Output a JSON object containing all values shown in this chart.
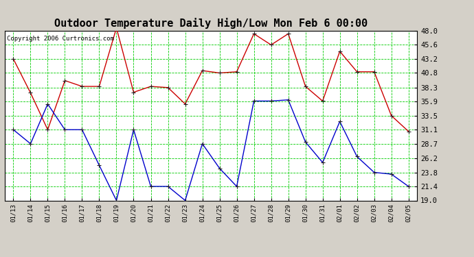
{
  "title": "Outdoor Temperature Daily High/Low Mon Feb 6 00:00",
  "copyright": "Copyright 2006 Curtronics.com",
  "x_labels": [
    "01/13",
    "01/14",
    "01/15",
    "01/16",
    "01/17",
    "01/18",
    "01/19",
    "01/20",
    "01/21",
    "01/22",
    "01/23",
    "01/24",
    "01/25",
    "01/26",
    "01/27",
    "01/28",
    "01/29",
    "01/30",
    "01/31",
    "02/01",
    "02/02",
    "02/03",
    "02/04",
    "02/05"
  ],
  "high": [
    43.2,
    37.4,
    31.1,
    39.5,
    38.5,
    38.5,
    48.5,
    37.5,
    38.5,
    38.3,
    35.5,
    41.2,
    40.8,
    41.0,
    47.5,
    45.6,
    47.5,
    38.5,
    36.0,
    44.5,
    41.0,
    41.0,
    33.5,
    30.8
  ],
  "low": [
    31.1,
    28.7,
    35.5,
    31.1,
    31.1,
    25.0,
    19.0,
    31.1,
    21.4,
    21.4,
    19.0,
    28.7,
    24.5,
    21.4,
    36.0,
    36.0,
    36.2,
    29.0,
    25.5,
    32.5,
    26.5,
    23.8,
    23.5,
    21.4
  ],
  "high_color": "#cc0000",
  "low_color": "#0000cc",
  "marker_color": "#006600",
  "bg_color": "#d4d0c8",
  "plot_bg": "#ffffff",
  "grid_color": "#00cc00",
  "title_fontsize": 11,
  "yticks": [
    19.0,
    21.4,
    23.8,
    26.2,
    28.7,
    31.1,
    33.5,
    35.9,
    38.3,
    40.8,
    43.2,
    45.6,
    48.0
  ],
  "ymin": 19.0,
  "ymax": 48.0
}
